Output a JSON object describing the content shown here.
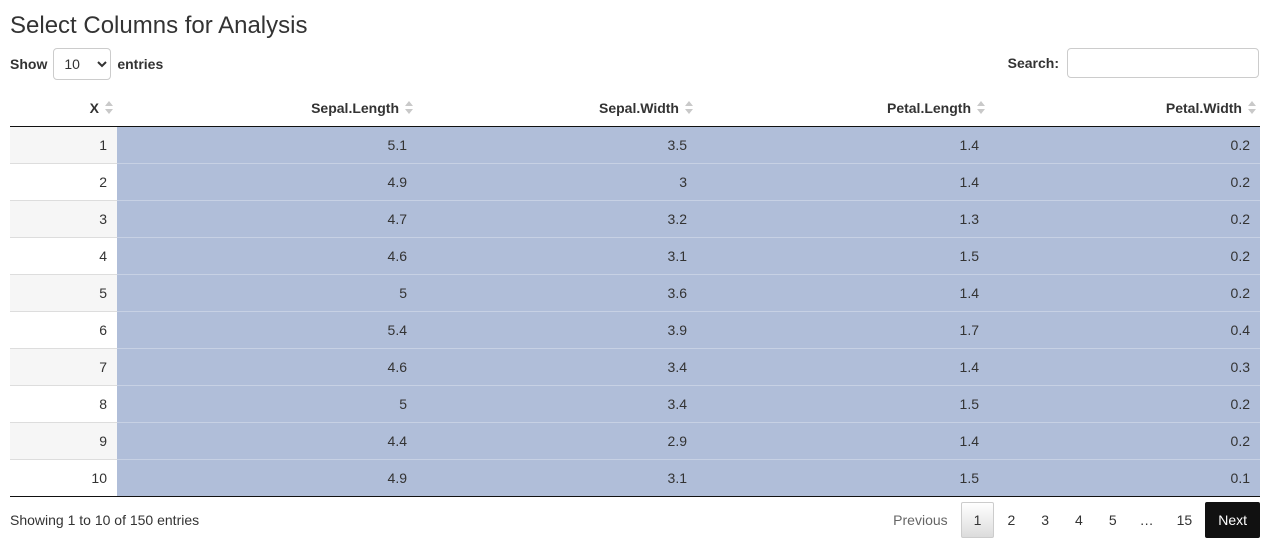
{
  "page": {
    "title": "Select Columns for Analysis"
  },
  "length_menu": {
    "show_label": "Show",
    "selected": "10",
    "entries_label": "entries"
  },
  "search": {
    "label": "Search:",
    "value": ""
  },
  "table": {
    "columns": [
      "X",
      "Sepal.Length",
      "Sepal.Width",
      "Petal.Length",
      "Petal.Width"
    ],
    "rows": [
      [
        "1",
        "5.1",
        "3.5",
        "1.4",
        "0.2"
      ],
      [
        "2",
        "4.9",
        "3",
        "1.4",
        "0.2"
      ],
      [
        "3",
        "4.7",
        "3.2",
        "1.3",
        "0.2"
      ],
      [
        "4",
        "4.6",
        "3.1",
        "1.5",
        "0.2"
      ],
      [
        "5",
        "5",
        "3.6",
        "1.4",
        "0.2"
      ],
      [
        "6",
        "5.4",
        "3.9",
        "1.7",
        "0.4"
      ],
      [
        "7",
        "4.6",
        "3.4",
        "1.4",
        "0.3"
      ],
      [
        "8",
        "5",
        "3.4",
        "1.5",
        "0.2"
      ],
      [
        "9",
        "4.4",
        "2.9",
        "1.4",
        "0.2"
      ],
      [
        "10",
        "4.9",
        "3.1",
        "1.5",
        "0.1"
      ]
    ],
    "selected_columns": [
      "Sepal.Length",
      "Sepal.Width",
      "Petal.Length",
      "Petal.Width"
    ],
    "selection_color": "#b0bed9"
  },
  "info": {
    "text": "Showing 1 to 10 of 150 entries"
  },
  "pagination": {
    "previous": "Previous",
    "pages": [
      "1",
      "2",
      "3",
      "4",
      "5"
    ],
    "ellipsis": "…",
    "last": "15",
    "next": "Next",
    "current": "1"
  }
}
